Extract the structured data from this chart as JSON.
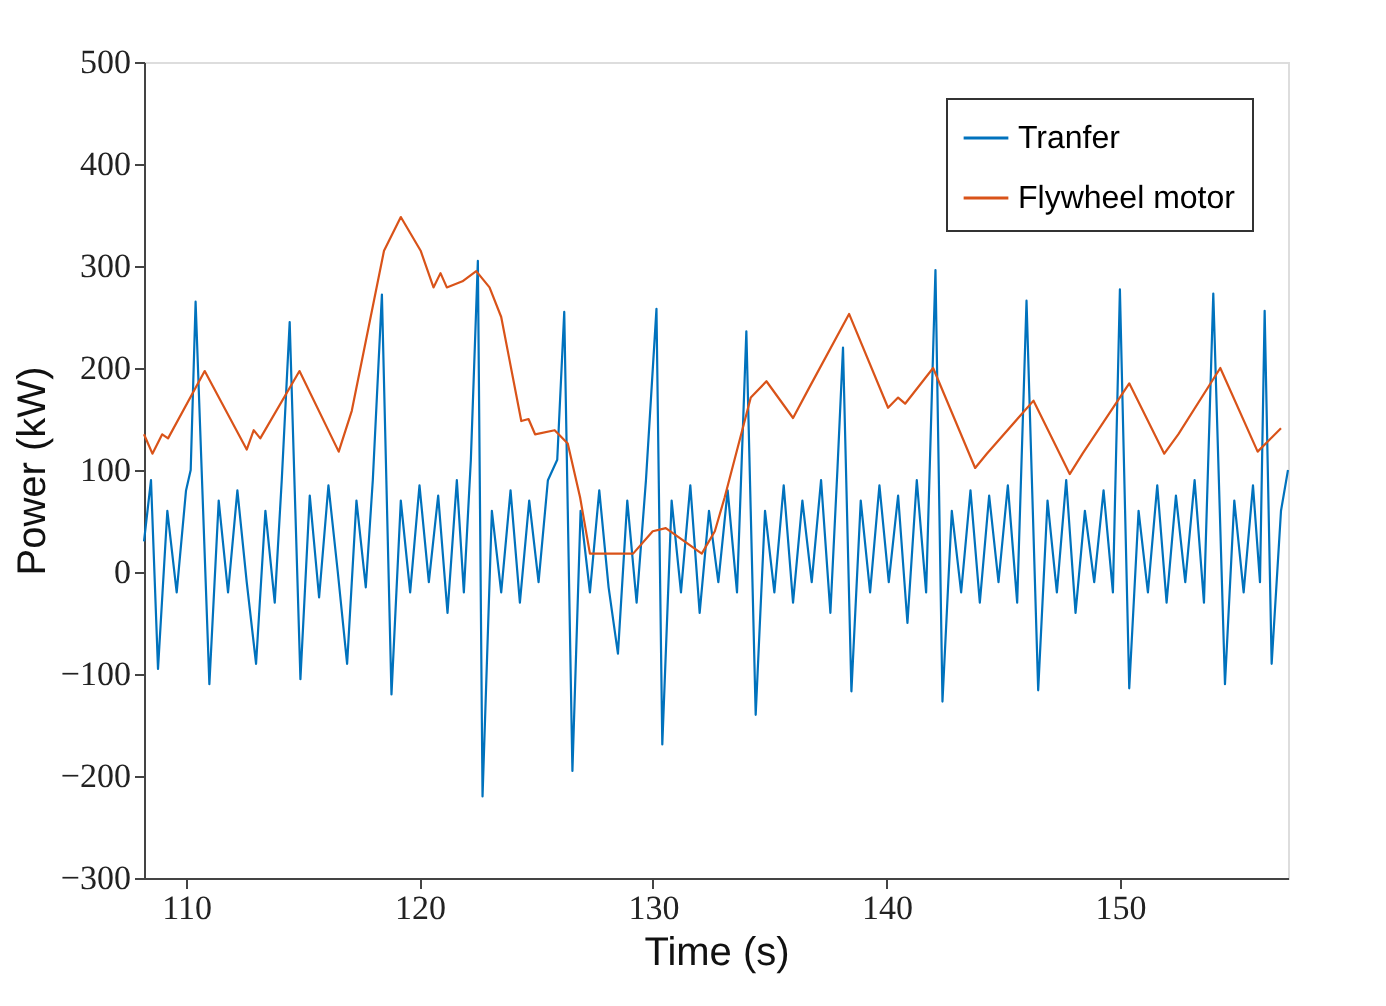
{
  "chart_data": {
    "type": "line",
    "xlabel": "Time (s)",
    "ylabel": "Power (kW)",
    "xlim": [
      108.2,
      157.2
    ],
    "ylim": [
      -300,
      500
    ],
    "xticks": [
      110,
      120,
      130,
      140,
      150
    ],
    "yticks": [
      -300,
      -200,
      -100,
      0,
      100,
      200,
      300,
      400,
      500
    ],
    "grid": false,
    "legend": "top right",
    "line_style": "solid",
    "series": [
      {
        "name": "Tranfer",
        "color": "#0072bd",
        "x": [
          108.2,
          108.5,
          108.8,
          109.2,
          109.6,
          110.0,
          110.2,
          110.41,
          111.0,
          111.4,
          111.8,
          112.2,
          112.6,
          113.0,
          113.4,
          113.8,
          114.1,
          114.44,
          114.9,
          115.3,
          115.7,
          116.1,
          116.5,
          116.9,
          117.3,
          117.7,
          118.0,
          118.39,
          118.8,
          119.2,
          119.6,
          120.0,
          120.4,
          120.8,
          121.2,
          121.6,
          121.9,
          122.2,
          122.5,
          122.7,
          123.1,
          123.5,
          123.9,
          124.3,
          124.7,
          125.1,
          125.5,
          125.9,
          126.2,
          126.55,
          126.9,
          127.3,
          127.7,
          128.1,
          128.5,
          128.9,
          129.3,
          129.7,
          130.15,
          130.4,
          130.8,
          131.2,
          131.6,
          132.0,
          132.4,
          132.8,
          133.2,
          133.6,
          134.0,
          134.4,
          134.8,
          135.2,
          135.6,
          136.0,
          136.4,
          136.8,
          137.2,
          137.6,
          137.9,
          138.14,
          138.5,
          138.9,
          139.3,
          139.7,
          140.1,
          140.5,
          140.9,
          141.3,
          141.7,
          142.1,
          142.4,
          142.8,
          143.2,
          143.6,
          144.0,
          144.4,
          144.8,
          145.2,
          145.6,
          146.0,
          146.5,
          146.9,
          147.3,
          147.7,
          148.1,
          148.5,
          148.9,
          149.3,
          149.7,
          150.0,
          150.4,
          150.8,
          151.2,
          151.6,
          152.0,
          152.4,
          152.8,
          153.2,
          153.6,
          154.0,
          154.5,
          154.9,
          155.3,
          155.7,
          156.0,
          156.2,
          156.5,
          156.9,
          157.2
        ],
        "values": [
          30,
          90,
          -95,
          60,
          -20,
          80,
          100,
          265,
          -110,
          70,
          -20,
          80,
          -10,
          -90,
          60,
          -30,
          90,
          245,
          -105,
          75,
          -25,
          85,
          0,
          -90,
          70,
          -15,
          90,
          272,
          -120,
          70,
          -20,
          85,
          -10,
          75,
          -40,
          90,
          -20,
          110,
          305,
          -220,
          60,
          -20,
          80,
          -30,
          70,
          -10,
          90,
          110,
          255,
          -195,
          60,
          -20,
          80,
          -15,
          -80,
          70,
          -30,
          90,
          258,
          -169,
          70,
          -20,
          85,
          -40,
          60,
          -10,
          80,
          -20,
          236,
          -140,
          60,
          -20,
          85,
          -30,
          70,
          -10,
          90,
          -40,
          100,
          220,
          -117,
          70,
          -20,
          85,
          -10,
          75,
          -50,
          90,
          -20,
          296,
          -127,
          60,
          -20,
          80,
          -30,
          75,
          -10,
          85,
          -30,
          266,
          -116,
          70,
          -20,
          90,
          -40,
          60,
          -10,
          80,
          -20,
          277,
          -114,
          60,
          -20,
          85,
          -30,
          75,
          -10,
          90,
          -30,
          273,
          -110,
          70,
          -20,
          85,
          -10,
          256,
          -90,
          60,
          100
        ]
      },
      {
        "name": "Flywheel motor",
        "color": "#d95319",
        "x": [
          108.2,
          108.56,
          108.98,
          109.23,
          110.8,
          112.6,
          112.9,
          113.18,
          114.86,
          116.54,
          117.1,
          118.48,
          119.2,
          120.05,
          120.6,
          120.9,
          121.17,
          121.84,
          122.43,
          123.0,
          123.5,
          124.36,
          124.67,
          124.95,
          125.79,
          126.35,
          126.88,
          127.3,
          129.15,
          129.99,
          130.55,
          132.09,
          132.65,
          133.07,
          134.19,
          134.86,
          136.0,
          136.7,
          138.4,
          140.07,
          140.5,
          140.8,
          142.0,
          143.8,
          144.3,
          146.3,
          147.85,
          148.4,
          150.4,
          151.9,
          152.5,
          154.3,
          155.9,
          156.9
        ],
        "values": [
          135,
          116,
          135,
          131,
          197,
          120,
          139,
          131,
          197,
          118,
          158,
          315,
          348,
          315,
          279,
          293,
          279,
          285,
          295,
          279,
          250,
          148,
          150,
          135,
          139,
          126,
          73,
          18,
          18,
          40,
          43,
          18,
          40,
          73,
          171,
          187,
          151,
          181,
          253,
          161,
          171,
          165,
          200,
          102,
          116,
          168,
          96,
          116,
          185,
          116,
          135,
          200,
          118,
          141
        ]
      }
    ]
  }
}
